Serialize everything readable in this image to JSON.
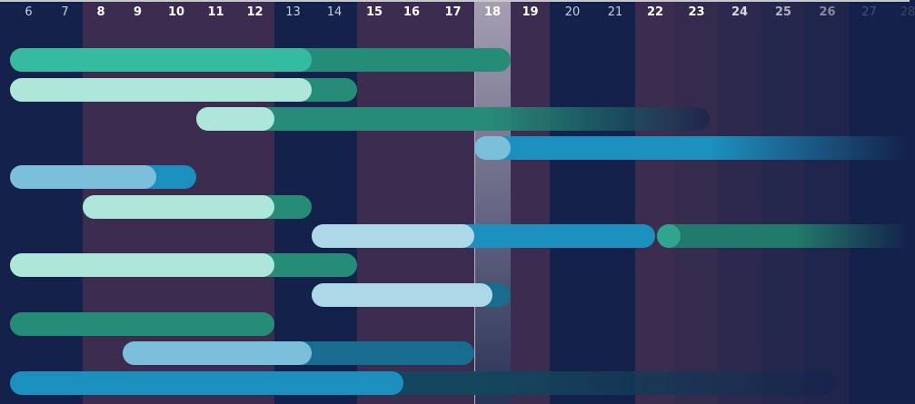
{
  "timeline": {
    "days": [
      6,
      7,
      8,
      9,
      10,
      11,
      12,
      13,
      14,
      15,
      16,
      17,
      18,
      19,
      20,
      21,
      22,
      23,
      24,
      25,
      26,
      27,
      28
    ],
    "weekend_days": [
      6,
      7,
      13,
      14,
      20,
      21,
      27,
      28
    ],
    "today": 18,
    "colors": {
      "background": "#14224b",
      "weekday_band": "#3c2d50",
      "today_highlight": "#a59eb3"
    }
  },
  "tasks": [
    {
      "start": 6,
      "progress_end": 14,
      "end": 19,
      "progress_color": "#35bca0",
      "color": "#258c78",
      "fade": false
    },
    {
      "start": 6,
      "progress_end": 14,
      "end": 15,
      "progress_color": "#aee6da",
      "color": "#258c78",
      "fade": false
    },
    {
      "start": 11,
      "progress_end": 13,
      "end": 23.8,
      "progress_color": "#aee6da",
      "color": "#258c78",
      "fade": true
    },
    {
      "start": 18,
      "progress_end": 19,
      "end": 28.5,
      "progress_color": "#7bbfda",
      "color": "#1b8fbd",
      "fade": true
    },
    {
      "start": 6,
      "progress_end": 10,
      "end": 11,
      "progress_color": "#7bbfda",
      "color": "#1b8fbd",
      "fade": false
    },
    {
      "start": 8,
      "progress_end": 13,
      "end": 14,
      "progress_color": "#aee6da",
      "color": "#258c78",
      "fade": false
    },
    {
      "start": 14,
      "progress_end": 18,
      "end": 22.5,
      "progress_color": "#acd8e8",
      "color": "#1b8fbd",
      "fade": false
    },
    {
      "start": 22.55,
      "progress_end": 23.1,
      "end": 28.5,
      "progress_color": "#2fa58f",
      "color": "#227a6c",
      "fade": true
    },
    {
      "start": 6,
      "progress_end": 13,
      "end": 15,
      "progress_color": "#aee6da",
      "color": "#258c78",
      "fade": false
    },
    {
      "start": 14,
      "progress_end": 18.5,
      "end": 19,
      "progress_color": "#acd8e8",
      "color": "#176c8f",
      "fade": false
    },
    {
      "start": 6,
      "progress_end": 13,
      "end": 13,
      "progress_color": "#258c78",
      "color": "#258c78",
      "fade": false
    },
    {
      "start": 9.1,
      "progress_end": 14,
      "end": 18,
      "progress_color": "#7bbfda",
      "color": "#176c8f",
      "fade": false
    },
    {
      "start": 6,
      "progress_end": 16.3,
      "end": 26.7,
      "progress_color": "#1b8fbd",
      "color": "#14475f",
      "fade": true
    }
  ]
}
